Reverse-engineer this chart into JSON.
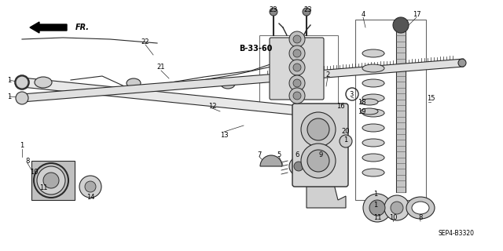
{
  "bg_color": "#ffffff",
  "line_color": "#2a2a2a",
  "text_color": "#000000",
  "ref_code": "B-33-60",
  "diagram_id": "SEP4-B3320",
  "figsize": [
    6.4,
    3.2
  ],
  "dpi": 100
}
